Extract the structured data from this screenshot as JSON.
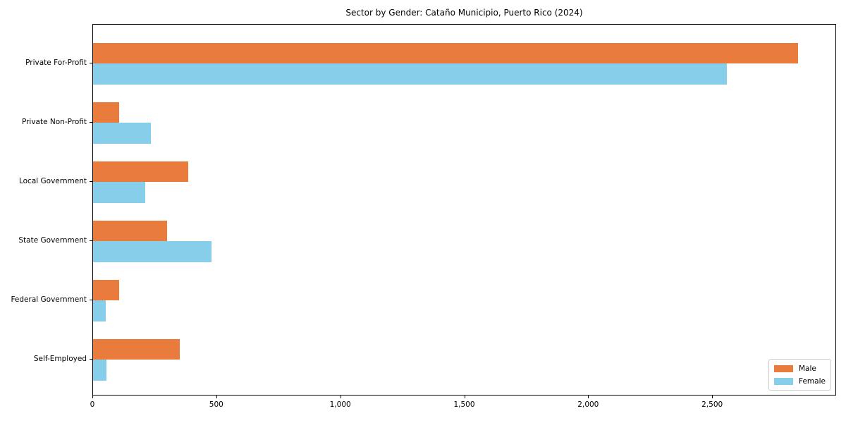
{
  "chart_data": {
    "type": "bar",
    "orientation": "horizontal",
    "title": "Sector by Gender: Cataño Municipio, Puerto Rico (2024)",
    "categories": [
      "Private For-Profit",
      "Private Non-Profit",
      "Local Government",
      "State Government",
      "Federal Government",
      "Self-Employed"
    ],
    "series": [
      {
        "name": "Male",
        "color": "#E97C3C",
        "values": [
          2850,
          105,
          385,
          300,
          105,
          350
        ]
      },
      {
        "name": "Female",
        "color": "#87CEEB",
        "values": [
          2560,
          235,
          210,
          480,
          50,
          55
        ]
      }
    ],
    "xlabel": "",
    "ylabel": "",
    "xlim": [
      0,
      3000
    ],
    "xticks": [
      0,
      500,
      1000,
      1500,
      2000,
      2500
    ],
    "xtick_labels": [
      "0",
      "500",
      "1,000",
      "1,500",
      "2,000",
      "2,500"
    ],
    "grid": false,
    "legend_position": "lower right",
    "frame_color": "#000000"
  }
}
